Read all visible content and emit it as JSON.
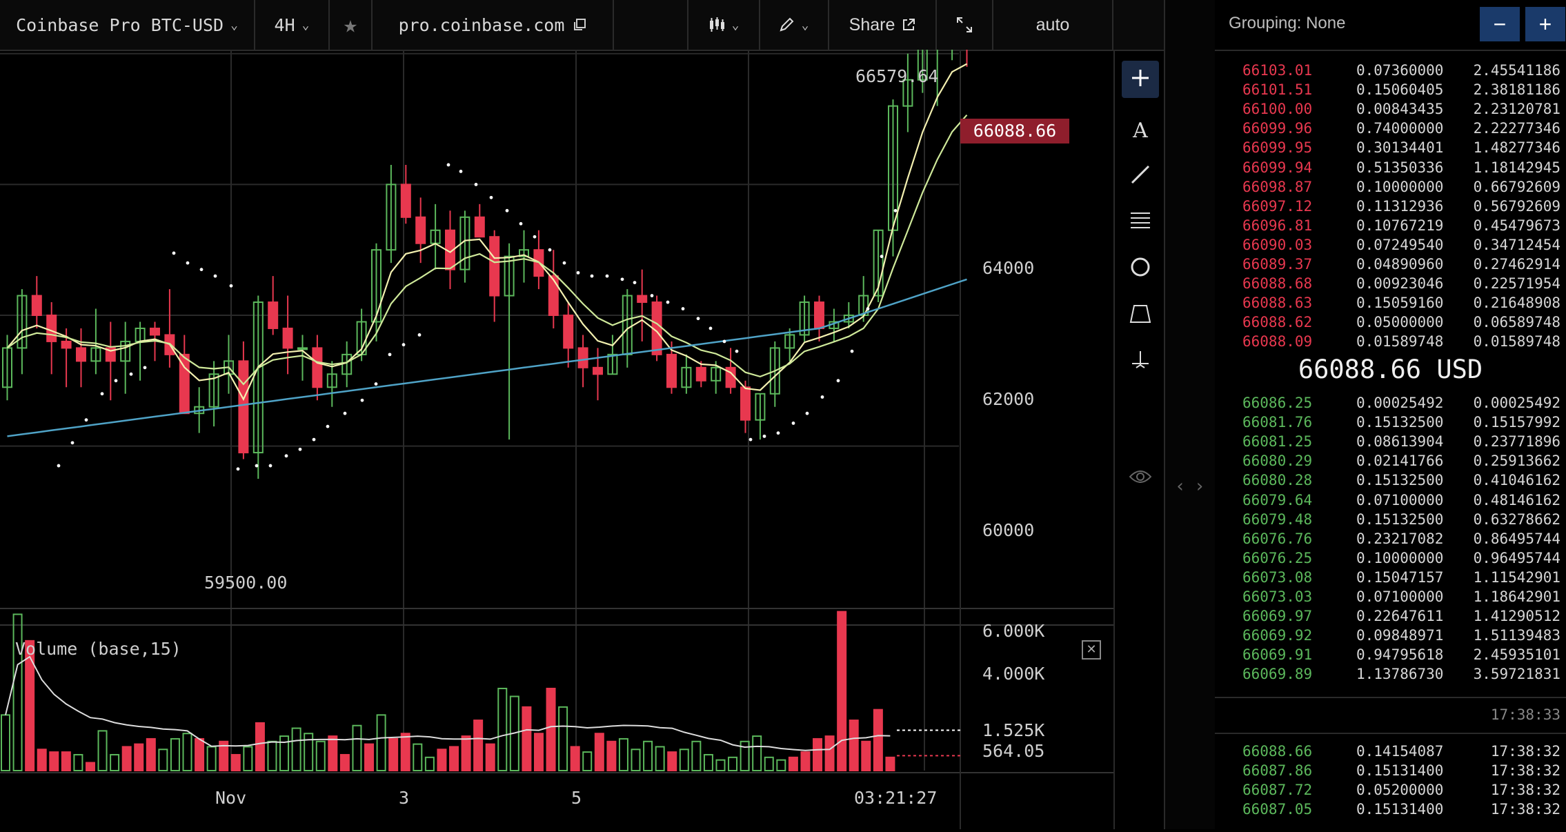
{
  "toolbar": {
    "symbol": "Coinbase Pro BTC-USD",
    "interval": "4H",
    "site": "pro.coinbase.com",
    "share": "Share",
    "scale_mode": "auto"
  },
  "chart": {
    "high_label": "66579.64",
    "low_label": "59500.00",
    "current_price": "66088.66",
    "price_axis": [
      "64000",
      "62000",
      "60000"
    ],
    "x_axis": [
      "Nov",
      "3",
      "5"
    ],
    "time_label": "03:21:27",
    "volume_title": "Volume (base,15)",
    "volume_axis": [
      "6.000K",
      "4.000K",
      "1.525K",
      "564.05"
    ],
    "colors": {
      "up": "#5cb85c",
      "down": "#e8384f",
      "ema_fast": "#f3f0b0",
      "ema_slow": "#cfe99a",
      "ma_long": "#4fa3c7"
    }
  },
  "order_book": {
    "grouping_label": "Grouping:",
    "grouping_value": "None",
    "minus": "−",
    "plus": "+",
    "asks": [
      [
        "66103.01",
        "0.07360000",
        "2.45541186"
      ],
      [
        "66101.51",
        "0.15060405",
        "2.38181186"
      ],
      [
        "66100.00",
        "0.00843435",
        "2.23120781"
      ],
      [
        "66099.96",
        "0.74000000",
        "2.22277346"
      ],
      [
        "66099.95",
        "0.30134401",
        "1.48277346"
      ],
      [
        "66099.94",
        "0.51350336",
        "1.18142945"
      ],
      [
        "66098.87",
        "0.10000000",
        "0.66792609"
      ],
      [
        "66097.12",
        "0.11312936",
        "0.56792609"
      ],
      [
        "66096.81",
        "0.10767219",
        "0.45479673"
      ],
      [
        "66090.03",
        "0.07249540",
        "0.34712454"
      ],
      [
        "66089.37",
        "0.04890960",
        "0.27462914"
      ],
      [
        "66088.68",
        "0.00923046",
        "0.22571954"
      ],
      [
        "66088.63",
        "0.15059160",
        "0.21648908"
      ],
      [
        "66088.62",
        "0.05000000",
        "0.06589748"
      ],
      [
        "66088.09",
        "0.01589748",
        "0.01589748"
      ]
    ],
    "mid_price": "66088.66 USD",
    "bids": [
      [
        "66086.25",
        "0.00025492",
        "0.00025492"
      ],
      [
        "66081.76",
        "0.15132500",
        "0.15157992"
      ],
      [
        "66081.25",
        "0.08613904",
        "0.23771896"
      ],
      [
        "66080.29",
        "0.02141766",
        "0.25913662"
      ],
      [
        "66080.28",
        "0.15132500",
        "0.41046162"
      ],
      [
        "66079.64",
        "0.07100000",
        "0.48146162"
      ],
      [
        "66079.48",
        "0.15132500",
        "0.63278662"
      ],
      [
        "66076.76",
        "0.23217082",
        "0.86495744"
      ],
      [
        "66076.25",
        "0.10000000",
        "0.96495744"
      ],
      [
        "66073.08",
        "0.15047157",
        "1.11542901"
      ],
      [
        "66073.03",
        "0.07100000",
        "1.18642901"
      ],
      [
        "66069.97",
        "0.22647611",
        "1.41290512"
      ],
      [
        "66069.92",
        "0.09848971",
        "1.51139483"
      ],
      [
        "66069.91",
        "0.94795618",
        "2.45935101"
      ],
      [
        "66069.89",
        "1.13786730",
        "3.59721831"
      ]
    ],
    "clock": "17:38:33",
    "trades": [
      [
        "66088.66",
        "0.14154087",
        "17:38:32"
      ],
      [
        "66087.86",
        "0.15131400",
        "17:38:32"
      ],
      [
        "66087.72",
        "0.05200000",
        "17:38:32"
      ],
      [
        "66087.05",
        "0.15131400",
        "17:38:32"
      ]
    ]
  }
}
